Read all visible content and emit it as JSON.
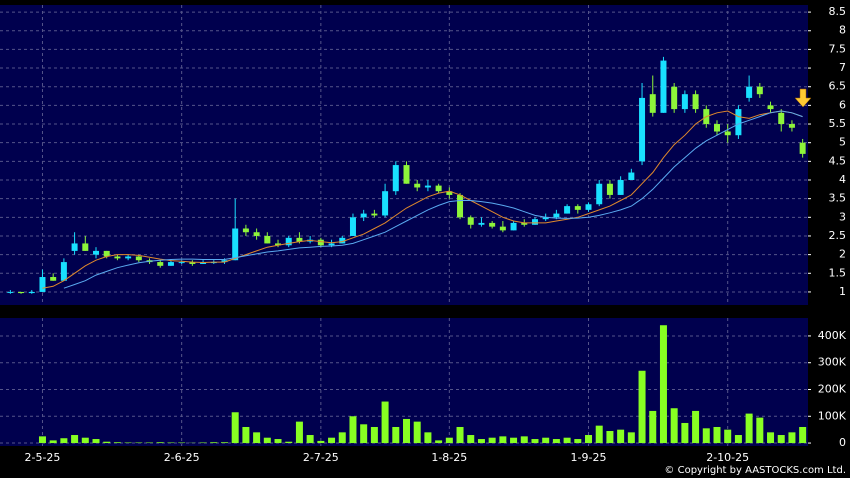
{
  "chart_data": [
    {
      "type": "candlestick",
      "categories": [
        null,
        null,
        null,
        "2-5-25",
        null,
        null,
        null,
        null,
        null,
        null,
        null,
        null,
        null,
        null,
        null,
        null,
        "2-6-25",
        null,
        null,
        null,
        null,
        null,
        null,
        null,
        null,
        null,
        null,
        null,
        null,
        "2-7-25",
        null,
        null,
        null,
        null,
        null,
        null,
        null,
        null,
        null,
        null,
        null,
        "1-8-25",
        null,
        null,
        null,
        null,
        null,
        null,
        null,
        null,
        null,
        null,
        null,
        null,
        "1-9-25",
        null,
        null,
        null,
        null,
        null,
        null,
        null,
        null,
        null,
        null,
        null,
        null,
        "2-10-25",
        null,
        null,
        null,
        null,
        null,
        null,
        null
      ],
      "candles": [
        [
          1.0,
          1.05,
          0.95,
          1.0
        ],
        [
          1.0,
          1.0,
          0.95,
          0.97
        ],
        [
          0.97,
          1.05,
          0.95,
          1.0
        ],
        [
          1.0,
          1.6,
          1.0,
          1.4
        ],
        [
          1.4,
          1.5,
          1.3,
          1.3
        ],
        [
          1.3,
          1.9,
          1.3,
          1.8
        ],
        [
          2.1,
          2.6,
          2.0,
          2.3
        ],
        [
          2.3,
          2.5,
          2.1,
          2.1
        ],
        [
          2.0,
          2.2,
          1.9,
          2.1
        ],
        [
          2.1,
          2.1,
          1.9,
          1.95
        ],
        [
          1.95,
          2.0,
          1.85,
          1.9
        ],
        [
          1.9,
          2.0,
          1.85,
          1.95
        ],
        [
          1.95,
          2.0,
          1.8,
          1.85
        ],
        [
          1.85,
          1.9,
          1.75,
          1.8
        ],
        [
          1.8,
          1.85,
          1.65,
          1.7
        ],
        [
          1.7,
          1.85,
          1.7,
          1.8
        ],
        [
          1.8,
          1.85,
          1.75,
          1.8
        ],
        [
          1.8,
          1.85,
          1.7,
          1.75
        ],
        [
          1.75,
          1.85,
          1.75,
          1.8
        ],
        [
          1.8,
          1.85,
          1.75,
          1.8
        ],
        [
          1.8,
          1.9,
          1.75,
          1.85
        ],
        [
          1.85,
          3.5,
          1.85,
          2.7
        ],
        [
          2.7,
          2.8,
          2.5,
          2.6
        ],
        [
          2.6,
          2.7,
          2.4,
          2.5
        ],
        [
          2.5,
          2.6,
          2.3,
          2.3
        ],
        [
          2.3,
          2.4,
          2.2,
          2.25
        ],
        [
          2.25,
          2.5,
          2.2,
          2.45
        ],
        [
          2.45,
          2.6,
          2.3,
          2.35
        ],
        [
          2.35,
          2.5,
          2.3,
          2.4
        ],
        [
          2.4,
          2.45,
          2.2,
          2.25
        ],
        [
          2.25,
          2.4,
          2.2,
          2.3
        ],
        [
          2.3,
          2.5,
          2.3,
          2.45
        ],
        [
          2.5,
          3.1,
          2.5,
          3.0
        ],
        [
          3.0,
          3.2,
          2.9,
          3.1
        ],
        [
          3.1,
          3.2,
          3.0,
          3.05
        ],
        [
          3.05,
          3.9,
          3.0,
          3.7
        ],
        [
          3.7,
          4.5,
          3.6,
          4.4
        ],
        [
          4.4,
          4.5,
          3.9,
          3.9
        ],
        [
          3.9,
          4.0,
          3.7,
          3.8
        ],
        [
          3.8,
          4.0,
          3.7,
          3.85
        ],
        [
          3.85,
          3.9,
          3.65,
          3.7
        ],
        [
          3.7,
          3.8,
          3.5,
          3.6
        ],
        [
          3.6,
          3.65,
          2.95,
          3.0
        ],
        [
          3.0,
          3.05,
          2.7,
          2.8
        ],
        [
          2.8,
          3.0,
          2.75,
          2.85
        ],
        [
          2.85,
          2.9,
          2.7,
          2.75
        ],
        [
          2.75,
          2.9,
          2.6,
          2.65
        ],
        [
          2.65,
          2.9,
          2.65,
          2.85
        ],
        [
          2.85,
          2.95,
          2.75,
          2.8
        ],
        [
          2.8,
          3.0,
          2.8,
          2.95
        ],
        [
          2.95,
          3.1,
          2.9,
          3.0
        ],
        [
          3.0,
          3.2,
          2.95,
          3.1
        ],
        [
          3.1,
          3.35,
          3.1,
          3.3
        ],
        [
          3.3,
          3.35,
          3.1,
          3.2
        ],
        [
          3.2,
          3.4,
          3.15,
          3.35
        ],
        [
          3.35,
          4.0,
          3.3,
          3.9
        ],
        [
          3.9,
          4.0,
          3.5,
          3.6
        ],
        [
          3.6,
          4.1,
          3.6,
          4.0
        ],
        [
          4.0,
          4.3,
          4.0,
          4.2
        ],
        [
          4.5,
          6.6,
          4.4,
          6.2
        ],
        [
          6.3,
          6.8,
          5.7,
          5.8
        ],
        [
          5.8,
          7.3,
          5.8,
          7.2
        ],
        [
          6.5,
          6.6,
          5.8,
          5.9
        ],
        [
          5.9,
          6.4,
          5.8,
          6.3
        ],
        [
          6.3,
          6.4,
          5.8,
          5.9
        ],
        [
          5.9,
          6.0,
          5.4,
          5.5
        ],
        [
          5.5,
          5.6,
          5.2,
          5.3
        ],
        [
          5.3,
          5.5,
          5.0,
          5.2
        ],
        [
          5.2,
          6.0,
          5.1,
          5.9
        ],
        [
          6.2,
          6.8,
          6.1,
          6.5
        ],
        [
          6.5,
          6.6,
          6.2,
          6.3
        ],
        [
          6.0,
          6.1,
          5.8,
          5.9
        ],
        [
          5.8,
          5.9,
          5.3,
          5.5
        ],
        [
          5.5,
          5.6,
          5.3,
          5.4
        ],
        [
          5.0,
          5.1,
          4.6,
          4.7
        ]
      ],
      "up_color": "#19e0ff",
      "down_color": "#8ef53a",
      "series": [
        {
          "color": "#e0892c",
          "values": [
            null,
            null,
            null,
            1.1,
            1.15,
            1.3,
            1.5,
            1.7,
            1.85,
            1.95,
            2.0,
            2.0,
            1.98,
            1.93,
            1.88,
            1.84,
            1.82,
            1.8,
            1.79,
            1.8,
            1.8,
            1.9,
            2.0,
            2.1,
            2.2,
            2.25,
            2.3,
            2.35,
            2.38,
            2.35,
            2.32,
            2.35,
            2.45,
            2.55,
            2.7,
            2.85,
            3.05,
            3.25,
            3.4,
            3.55,
            3.65,
            3.7,
            3.6,
            3.45,
            3.3,
            3.15,
            3.0,
            2.9,
            2.85,
            2.85,
            2.85,
            2.9,
            2.95,
            3.0,
            3.1,
            3.2,
            3.3,
            3.45,
            3.6,
            3.9,
            4.2,
            4.6,
            4.95,
            5.2,
            5.5,
            5.7,
            5.8,
            5.85,
            5.7,
            5.65,
            5.75,
            5.8,
            5.85,
            5.8,
            5.7
          ]
        },
        {
          "color": "#5aaaf0",
          "values": [
            null,
            null,
            null,
            null,
            null,
            1.1,
            1.2,
            1.3,
            1.45,
            1.55,
            1.65,
            1.72,
            1.78,
            1.82,
            1.85,
            1.87,
            1.88,
            1.88,
            1.87,
            1.87,
            1.87,
            1.92,
            1.97,
            2.02,
            2.07,
            2.1,
            2.14,
            2.18,
            2.2,
            2.22,
            2.23,
            2.25,
            2.3,
            2.4,
            2.5,
            2.6,
            2.75,
            2.9,
            3.05,
            3.2,
            3.32,
            3.42,
            3.45,
            3.45,
            3.42,
            3.38,
            3.32,
            3.25,
            3.15,
            3.05,
            3.0,
            2.98,
            2.97,
            2.98,
            3.0,
            3.05,
            3.12,
            3.2,
            3.3,
            3.5,
            3.75,
            4.05,
            4.35,
            4.6,
            4.85,
            5.05,
            5.2,
            5.35,
            5.5,
            5.6,
            5.7,
            5.8,
            5.85,
            5.8,
            5.7
          ]
        }
      ],
      "ylim": [
        0.65,
        8.69
      ],
      "yticks": [
        1,
        1.5,
        2,
        2.5,
        3,
        3.5,
        4,
        4.5,
        5,
        5.5,
        6,
        6.5,
        7,
        7.5,
        8,
        8.5
      ],
      "grid": true
    },
    {
      "type": "bar",
      "values": [
        0,
        0,
        0,
        25000,
        10000,
        18000,
        30000,
        20000,
        15000,
        5000,
        3000,
        2000,
        2000,
        2000,
        3000,
        2000,
        2000,
        1000,
        2000,
        3000,
        3000,
        115000,
        60000,
        40000,
        20000,
        15000,
        5000,
        80000,
        30000,
        8000,
        20000,
        40000,
        100000,
        70000,
        60000,
        155000,
        60000,
        90000,
        80000,
        40000,
        10000,
        20000,
        60000,
        30000,
        15000,
        20000,
        25000,
        20000,
        25000,
        15000,
        20000,
        15000,
        20000,
        15000,
        30000,
        65000,
        45000,
        50000,
        40000,
        270000,
        120000,
        440000,
        130000,
        75000,
        120000,
        55000,
        60000,
        50000,
        30000,
        110000,
        95000,
        40000,
        30000,
        40000,
        60000
      ],
      "color": "#88ff22",
      "ylim": [
        -11000,
        467000
      ],
      "yticks": [
        {
          "value": 0,
          "label": "0"
        },
        {
          "value": 100000,
          "label": "100K"
        },
        {
          "value": 200000,
          "label": "200K"
        },
        {
          "value": 300000,
          "label": "300K"
        },
        {
          "value": 400000,
          "label": "400K"
        }
      ],
      "grid": true
    }
  ],
  "copyright": "© Copyright by AASTOCKS.com Ltd."
}
